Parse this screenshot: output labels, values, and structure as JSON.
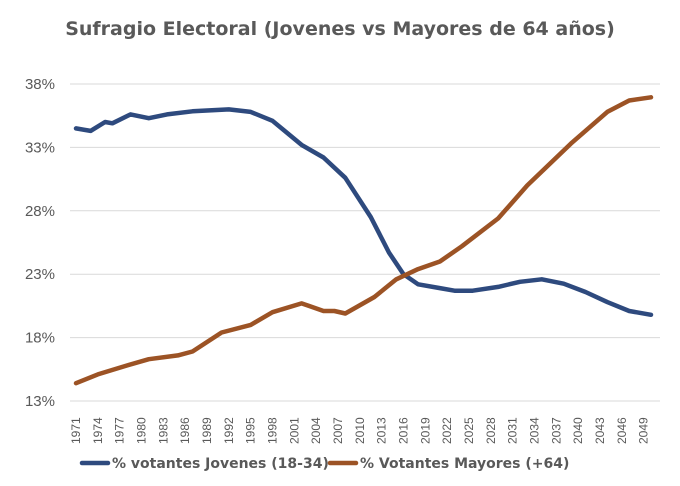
{
  "chart_data": {
    "type": "line",
    "title": "Sufragio Electoral (Jovenes vs Mayores de 64 años)",
    "xlabel": "",
    "ylabel": "",
    "ylim": [
      13,
      38
    ],
    "yticks": [
      "13%",
      "18%",
      "23%",
      "28%",
      "33%",
      "38%"
    ],
    "ytick_values": [
      13,
      18,
      23,
      28,
      33,
      38
    ],
    "xlim": [
      1971,
      2050
    ],
    "xticks": [
      "1971",
      "1974",
      "1977",
      "1980",
      "1983",
      "1986",
      "1989",
      "1992",
      "1995",
      "1998",
      "2001",
      "2004",
      "2007",
      "2010",
      "2013",
      "2016",
      "2019",
      "2022",
      "2025",
      "2028",
      "2031",
      "2034",
      "2037",
      "2040",
      "2043",
      "2046",
      "2049"
    ],
    "grid": true,
    "legend_position": "bottom",
    "series": [
      {
        "name": "% votantes Jovenes (18-34)",
        "color": "#2E4A7E",
        "x": [
          1971,
          1973,
          1975,
          1976,
          1978.5,
          1981,
          1983.5,
          1987,
          1992,
          1995,
          1998,
          2002,
          2005,
          2008,
          2011.5,
          2014,
          2016,
          2018,
          2021,
          2023,
          2025.5,
          2029,
          2032,
          2035,
          2038,
          2041,
          2044,
          2047,
          2050
        ],
        "y": [
          34.5,
          34.3,
          35.0,
          34.9,
          35.6,
          35.3,
          35.6,
          35.85,
          36.0,
          35.8,
          35.1,
          33.2,
          32.2,
          30.6,
          27.5,
          24.7,
          23.0,
          22.2,
          21.9,
          21.7,
          21.7,
          22.0,
          22.4,
          22.6,
          22.25,
          21.6,
          20.8,
          20.1,
          19.8
        ]
      },
      {
        "name": "% Votantes Mayores (+64)",
        "color": "#9C5325",
        "x": [
          1971,
          1974,
          1978,
          1981,
          1985,
          1987,
          1991,
          1995,
          1998,
          2002,
          2003,
          2005,
          2006.5,
          2008,
          2012,
          2015,
          2018,
          2021,
          2024,
          2029,
          2033,
          2039,
          2044,
          2047,
          2050
        ],
        "y": [
          14.4,
          15.1,
          15.8,
          16.3,
          16.6,
          16.9,
          18.4,
          19.0,
          20.0,
          20.7,
          20.5,
          20.1,
          20.1,
          19.9,
          21.2,
          22.6,
          23.4,
          24.0,
          25.2,
          27.4,
          30.0,
          33.3,
          35.8,
          36.7,
          36.95
        ]
      }
    ]
  }
}
